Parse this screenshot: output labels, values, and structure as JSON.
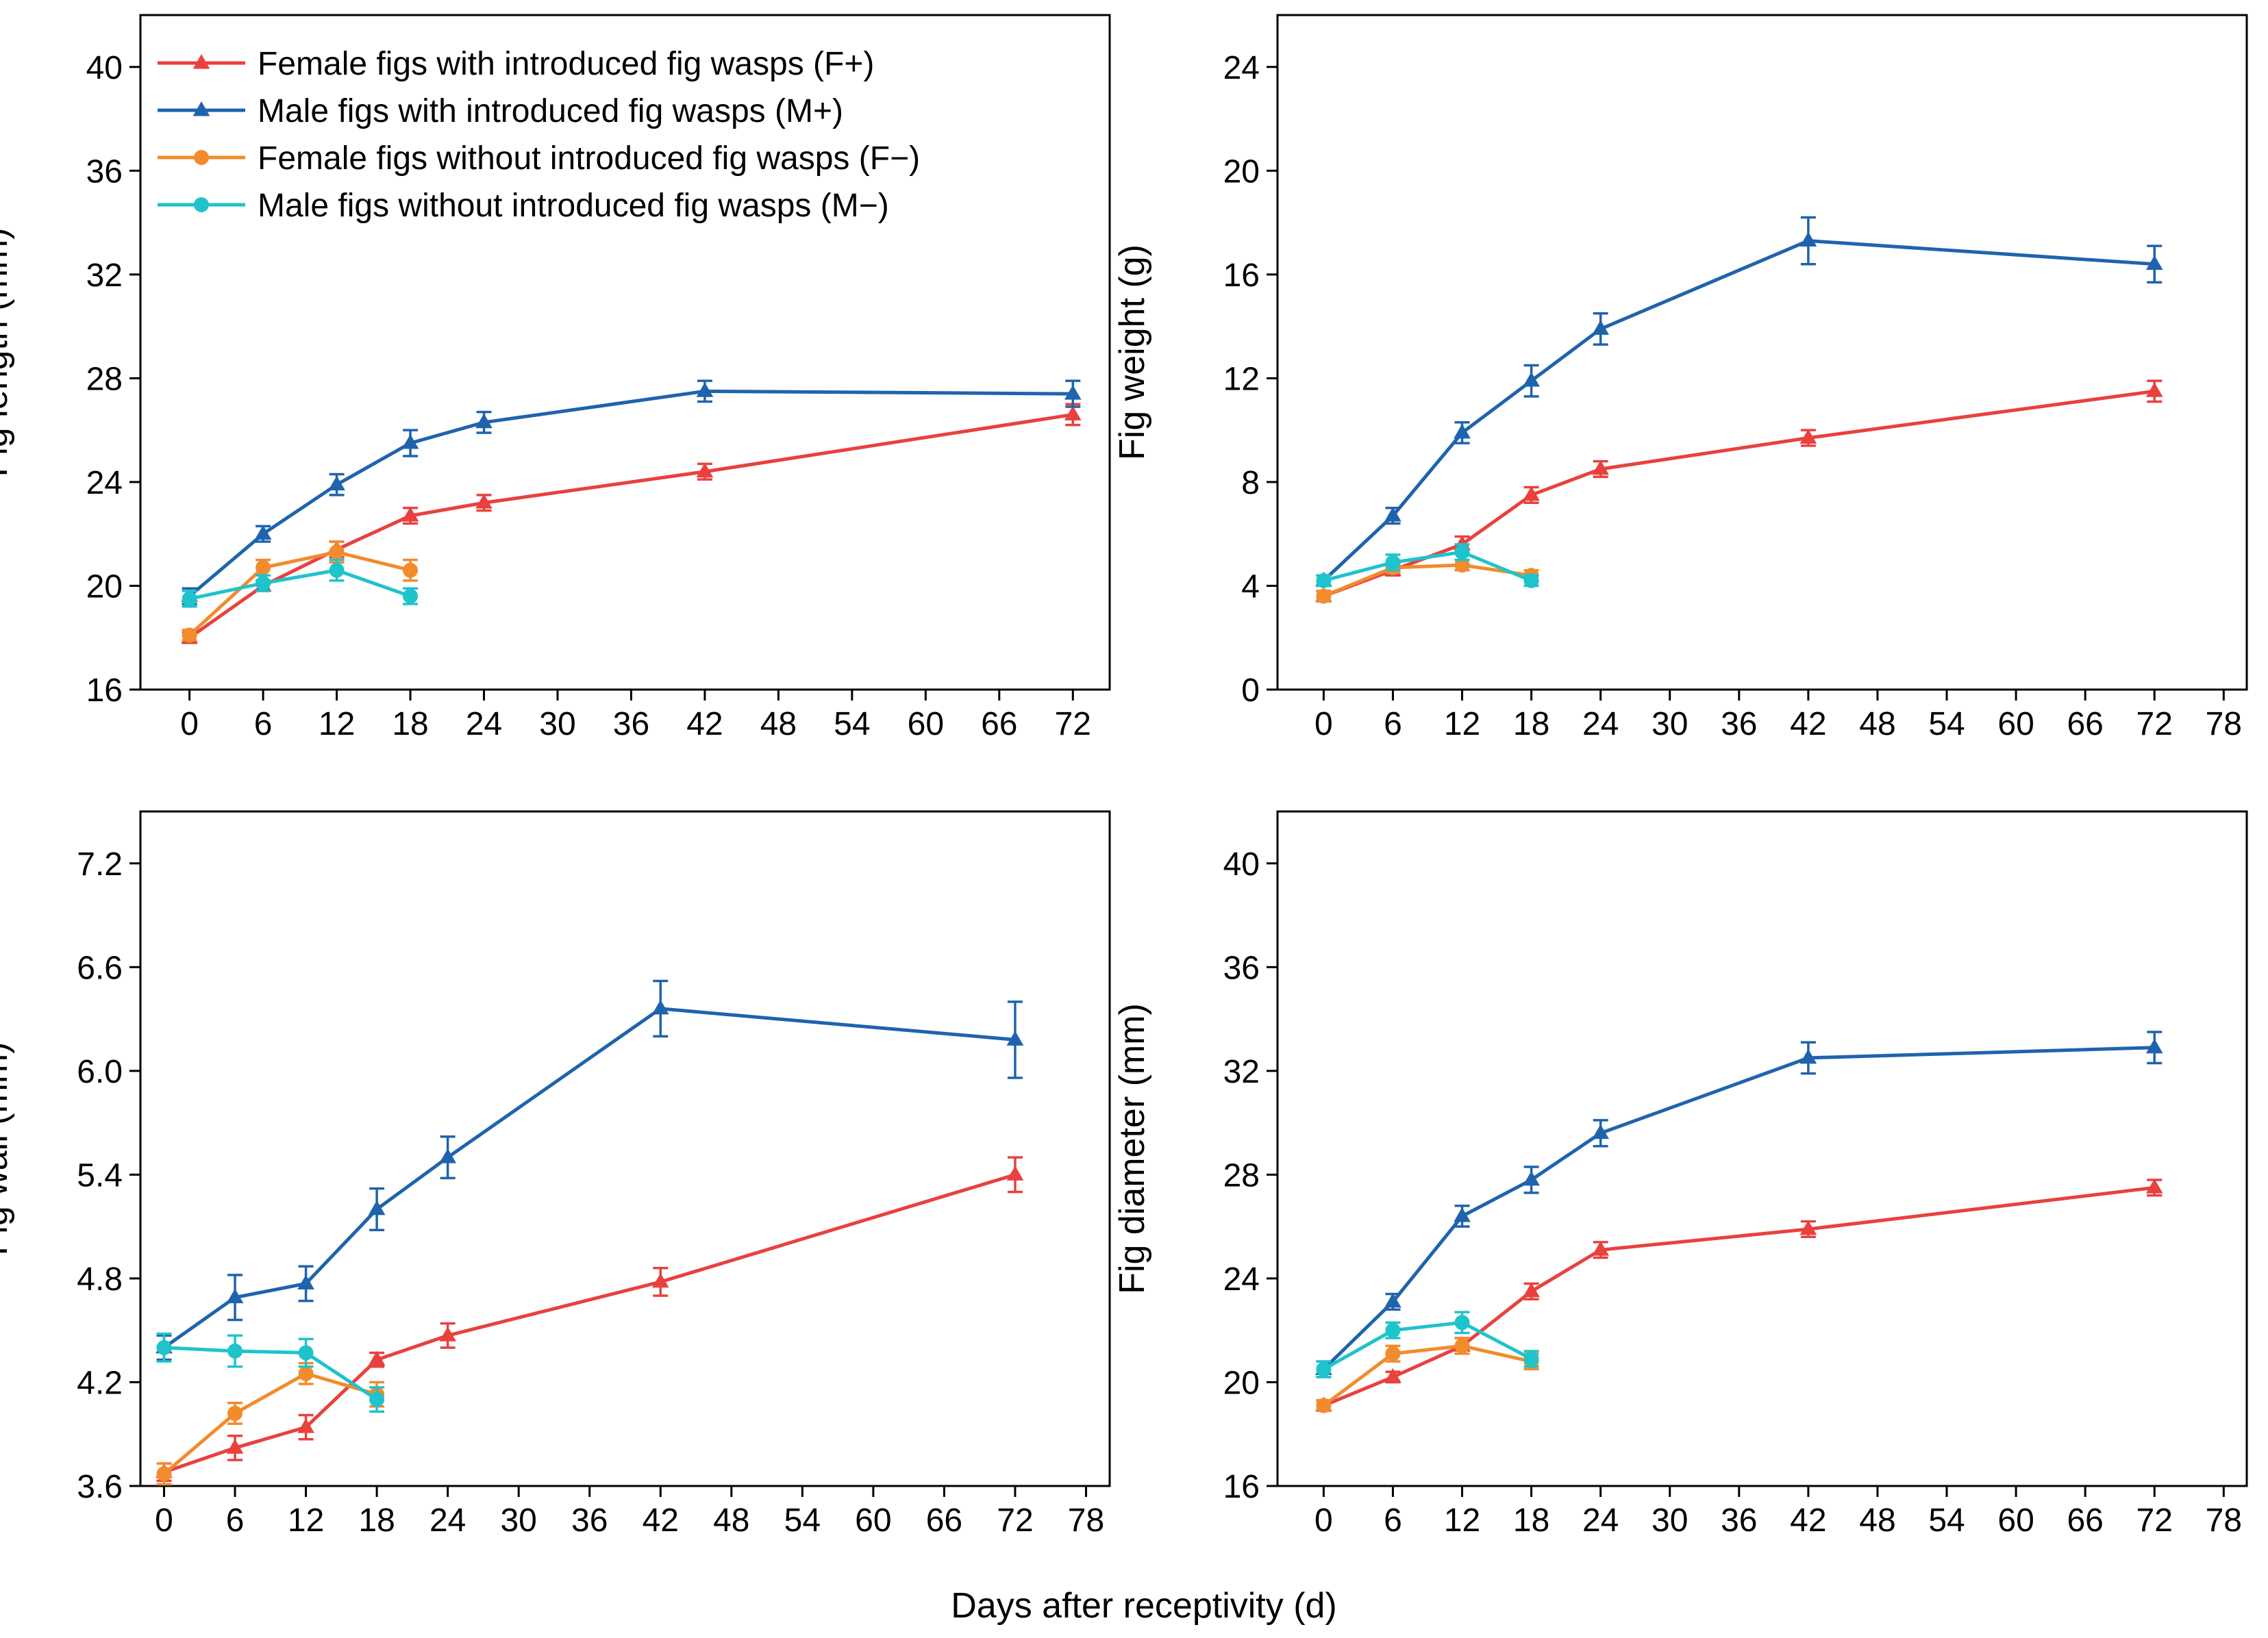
{
  "figure": {
    "xlabel": "Days after receptivity (d)"
  },
  "series_styles": [
    {
      "key": "F+",
      "color": "#e8413e",
      "marker": "triangle"
    },
    {
      "key": "M+",
      "color": "#1f63ad",
      "marker": "triangle"
    },
    {
      "key": "F-",
      "color": "#f28b2c",
      "marker": "circle"
    },
    {
      "key": "M-",
      "color": "#1ec3cc",
      "marker": "circle"
    }
  ],
  "legend": [
    "Female figs with introduced fig wasps (F+)",
    "Male figs with introduced fig wasps (M+)",
    "Female figs without introduced fig wasps (F−)",
    "Male figs without introduced fig wasps (M−)"
  ],
  "chart_data": [
    {
      "id": "length",
      "type": "line",
      "ylabel": "Fig length (mm)",
      "ylim": [
        16,
        42
      ],
      "yticks": [
        "16",
        "20",
        "24",
        "28",
        "32",
        "36",
        "40"
      ],
      "xlim": [
        -4,
        75
      ],
      "xticks": [
        "0",
        "6",
        "12",
        "18",
        "24",
        "30",
        "36",
        "42",
        "48",
        "54",
        "60",
        "66",
        "72"
      ],
      "series": [
        {
          "name": "F+",
          "x": [
            0,
            6,
            12,
            18,
            24,
            42,
            72
          ],
          "y": [
            18.0,
            20.0,
            21.4,
            22.7,
            23.2,
            24.4,
            26.6
          ],
          "err": [
            0.2,
            0.2,
            0.3,
            0.3,
            0.3,
            0.3,
            0.4
          ]
        },
        {
          "name": "M+",
          "x": [
            0,
            6,
            12,
            18,
            24,
            42,
            72
          ],
          "y": [
            19.6,
            22.0,
            23.9,
            25.5,
            26.3,
            27.5,
            27.4
          ],
          "err": [
            0.3,
            0.3,
            0.4,
            0.5,
            0.4,
            0.4,
            0.5
          ]
        },
        {
          "name": "F-",
          "x": [
            0,
            6,
            12,
            18
          ],
          "y": [
            18.1,
            20.7,
            21.3,
            20.6
          ],
          "err": [
            0.2,
            0.3,
            0.4,
            0.4
          ]
        },
        {
          "name": "M-",
          "x": [
            0,
            6,
            12,
            18
          ],
          "y": [
            19.5,
            20.1,
            20.6,
            19.6
          ],
          "err": [
            0.3,
            0.3,
            0.4,
            0.3
          ]
        }
      ]
    },
    {
      "id": "weight",
      "type": "line",
      "ylabel": "Fig weight (g)",
      "ylim": [
        0,
        26
      ],
      "yticks": [
        "0",
        "4",
        "8",
        "12",
        "16",
        "20",
        "24"
      ],
      "xlim": [
        -4,
        80
      ],
      "xticks": [
        "0",
        "6",
        "12",
        "18",
        "24",
        "30",
        "36",
        "42",
        "48",
        "54",
        "60",
        "66",
        "72",
        "78"
      ],
      "series": [
        {
          "name": "F+",
          "x": [
            0,
            6,
            12,
            18,
            24,
            42,
            72
          ],
          "y": [
            3.6,
            4.6,
            5.6,
            7.5,
            8.5,
            9.7,
            11.5
          ],
          "err": [
            0.2,
            0.2,
            0.3,
            0.3,
            0.3,
            0.3,
            0.4
          ]
        },
        {
          "name": "M+",
          "x": [
            0,
            6,
            12,
            18,
            24,
            42,
            72
          ],
          "y": [
            4.2,
            6.7,
            9.9,
            11.9,
            13.9,
            17.3,
            16.4
          ],
          "err": [
            0.2,
            0.3,
            0.4,
            0.6,
            0.6,
            0.9,
            0.7
          ]
        },
        {
          "name": "F-",
          "x": [
            0,
            6,
            12,
            18
          ],
          "y": [
            3.6,
            4.7,
            4.8,
            4.4
          ],
          "err": [
            0.2,
            0.2,
            0.2,
            0.2
          ]
        },
        {
          "name": "M-",
          "x": [
            0,
            6,
            12,
            18
          ],
          "y": [
            4.2,
            4.9,
            5.3,
            4.2
          ],
          "err": [
            0.2,
            0.3,
            0.3,
            0.2
          ]
        }
      ]
    },
    {
      "id": "wall",
      "type": "line",
      "ylabel": "Fig wall (mm)",
      "ylim": [
        3.6,
        7.5
      ],
      "yticks": [
        "3.6",
        "4.2",
        "4.8",
        "5.4",
        "6.0",
        "6.6",
        "7.2"
      ],
      "xlim": [
        -2,
        80
      ],
      "xticks": [
        "0",
        "6",
        "12",
        "18",
        "24",
        "30",
        "36",
        "42",
        "48",
        "54",
        "60",
        "66",
        "72",
        "78"
      ],
      "series": [
        {
          "name": "F+",
          "x": [
            0,
            6,
            12,
            18,
            24,
            42,
            72
          ],
          "y": [
            3.68,
            3.82,
            3.94,
            4.33,
            4.47,
            4.78,
            5.4
          ],
          "err": [
            0.05,
            0.07,
            0.07,
            0.04,
            0.07,
            0.08,
            0.1
          ]
        },
        {
          "name": "M+",
          "x": [
            0,
            6,
            12,
            18,
            24,
            42,
            72
          ],
          "y": [
            4.4,
            4.69,
            4.77,
            5.2,
            5.5,
            6.36,
            6.18
          ],
          "err": [
            0.07,
            0.13,
            0.1,
            0.12,
            0.12,
            0.16,
            0.22
          ]
        },
        {
          "name": "F-",
          "x": [
            0,
            6,
            12,
            18
          ],
          "y": [
            3.67,
            4.02,
            4.25,
            4.13
          ],
          "err": [
            0.06,
            0.06,
            0.06,
            0.07
          ]
        },
        {
          "name": "M-",
          "x": [
            0,
            6,
            12,
            18
          ],
          "y": [
            4.4,
            4.38,
            4.37,
            4.1
          ],
          "err": [
            0.08,
            0.09,
            0.08,
            0.07
          ]
        }
      ]
    },
    {
      "id": "diameter",
      "type": "line",
      "ylabel": "Fig diameter (mm)",
      "ylim": [
        16,
        42
      ],
      "yticks": [
        "16",
        "20",
        "24",
        "28",
        "32",
        "36",
        "40"
      ],
      "xlim": [
        -4,
        80
      ],
      "xticks": [
        "0",
        "6",
        "12",
        "18",
        "24",
        "30",
        "36",
        "42",
        "48",
        "54",
        "60",
        "66",
        "72",
        "78"
      ],
      "series": [
        {
          "name": "F+",
          "x": [
            0,
            6,
            12,
            18,
            24,
            42,
            72
          ],
          "y": [
            19.1,
            20.2,
            21.4,
            23.5,
            25.1,
            25.9,
            27.5
          ],
          "err": [
            0.2,
            0.2,
            0.3,
            0.3,
            0.3,
            0.3,
            0.3
          ]
        },
        {
          "name": "M+",
          "x": [
            0,
            6,
            12,
            18,
            24,
            42,
            72
          ],
          "y": [
            20.5,
            23.1,
            26.4,
            27.8,
            29.6,
            32.5,
            32.9
          ],
          "err": [
            0.3,
            0.3,
            0.4,
            0.5,
            0.5,
            0.6,
            0.6
          ]
        },
        {
          "name": "F-",
          "x": [
            0,
            6,
            12,
            18
          ],
          "y": [
            19.1,
            21.1,
            21.4,
            20.8
          ],
          "err": [
            0.2,
            0.3,
            0.3,
            0.3
          ]
        },
        {
          "name": "M-",
          "x": [
            0,
            6,
            12,
            18
          ],
          "y": [
            20.5,
            22.0,
            22.3,
            20.9
          ],
          "err": [
            0.3,
            0.3,
            0.4,
            0.3
          ]
        }
      ]
    }
  ]
}
